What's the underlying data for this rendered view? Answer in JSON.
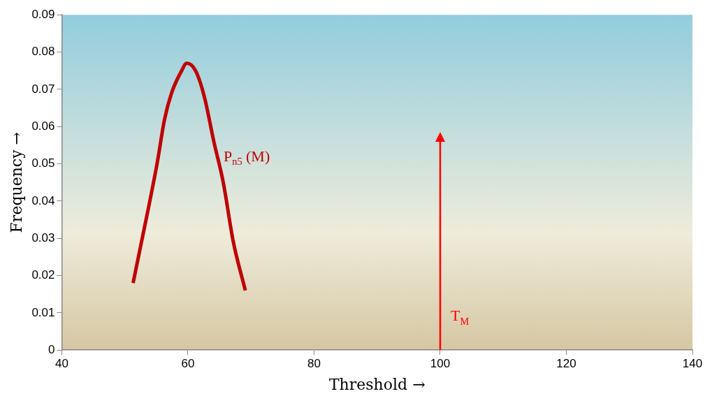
{
  "chart_data": {
    "type": "line",
    "xlabel": "Threshold →",
    "ylabel": "Frequency →",
    "series": [
      {
        "name": "P$_{n5}$ (M)",
        "color": "#c00000",
        "x": [
          51.3,
          53.6,
          55.1,
          56.3,
          57.4,
          59.0,
          59.8,
          61.2,
          62.6,
          64.1,
          65.6,
          67.2,
          69.1
        ],
        "values": [
          0.018,
          0.037,
          0.05,
          0.062,
          0.069,
          0.075,
          0.077,
          0.075,
          0.068,
          0.056,
          0.045,
          0.029,
          0.016
        ]
      }
    ],
    "xlim": [
      40,
      140
    ],
    "xticks": [
      40,
      60,
      80,
      100,
      120,
      140
    ],
    "ylim": [
      0,
      0.09
    ],
    "yticks": [
      0,
      0.01,
      0.02,
      0.03,
      0.04,
      0.05,
      0.06,
      0.07,
      0.08,
      0.09
    ],
    "ref_lines": [
      {
        "axis": "x",
        "value": 100,
        "label": "T$_{M}$",
        "color": "#ff0000"
      }
    ],
    "grid": false,
    "legend": false,
    "marker": "none",
    "line_style": "solid"
  }
}
